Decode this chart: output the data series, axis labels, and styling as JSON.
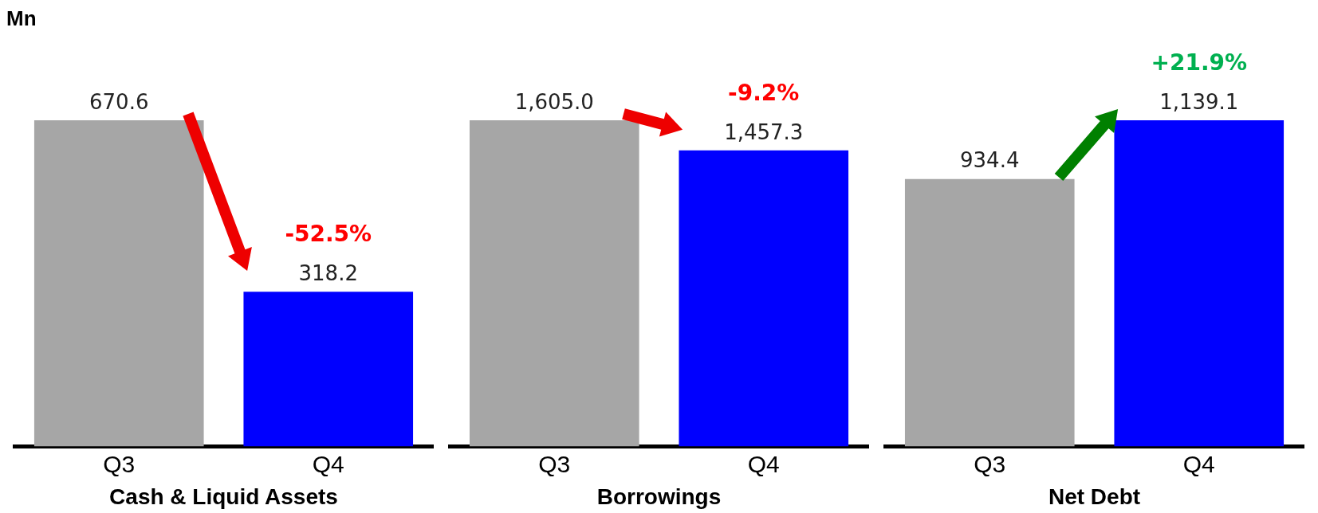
{
  "chart_data": [
    {
      "type": "bar",
      "title": "Mn",
      "xlabel": "Cash & Liquid Assets",
      "categories": [
        "Q3",
        "Q4"
      ],
      "values": [
        670.6,
        318.2
      ],
      "colors": [
        "#a6a6a6",
        "#0000ff"
      ],
      "value_labels": [
        "670.6",
        "318.2"
      ],
      "annotations": [
        "-52.5%"
      ],
      "tick_labels": "x",
      "grid": false,
      "legend": false
    },
    {
      "type": "bar",
      "xlabel": "Borrowings",
      "categories": [
        "Q3",
        "Q4"
      ],
      "values": [
        1605.0,
        1457.3
      ],
      "colors": [
        "#a6a6a6",
        "#0000ff"
      ],
      "value_labels": [
        "1,605.0",
        "1,457.3"
      ],
      "annotations": [
        "-9.2%"
      ],
      "tick_labels": "x",
      "grid": false,
      "legend": false
    },
    {
      "type": "bar",
      "xlabel": "Net Debt",
      "categories": [
        "Q3",
        "Q4"
      ],
      "values": [
        934.4,
        1139.1
      ],
      "colors": [
        "#a6a6a6",
        "#0000ff"
      ],
      "value_labels": [
        "934.4",
        "1,139.1"
      ],
      "annotations": [
        "+21.9%"
      ],
      "tick_labels": "x",
      "grid": false,
      "legend": false
    }
  ]
}
